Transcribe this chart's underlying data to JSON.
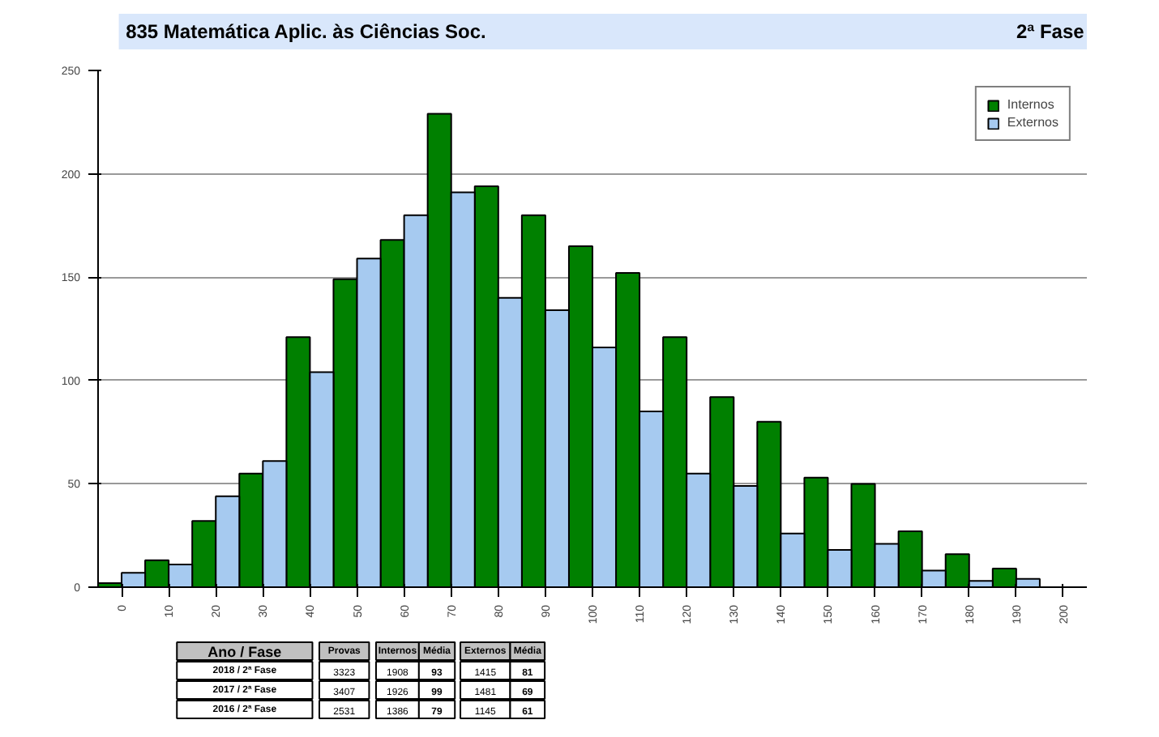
{
  "chart_data": {
    "type": "bar",
    "title": "835  Matemática Aplic. às Ciências Soc.",
    "subtitle": "2ª Fase",
    "categories": [
      "0",
      "10",
      "20",
      "30",
      "40",
      "50",
      "60",
      "70",
      "80",
      "90",
      "100",
      "110",
      "120",
      "130",
      "140",
      "150",
      "160",
      "170",
      "180",
      "190",
      "200"
    ],
    "series": [
      {
        "name": "Internos",
        "color": "#008000",
        "values": [
          2,
          13,
          32,
          55,
          121,
          149,
          168,
          229,
          194,
          180,
          165,
          152,
          121,
          92,
          80,
          53,
          50,
          27,
          16,
          9,
          null
        ]
      },
      {
        "name": "Externos",
        "color": "#a6caf0",
        "values": [
          7,
          11,
          44,
          61,
          104,
          159,
          180,
          191,
          140,
          134,
          116,
          85,
          55,
          49,
          26,
          18,
          21,
          8,
          3,
          4,
          null
        ]
      }
    ],
    "ylim": [
      0,
      250
    ],
    "yticks": [
      0,
      50,
      100,
      150,
      200,
      250
    ],
    "grid": "y",
    "legend": "top right",
    "annotations": [
      "Ano / Fase",
      "Provas",
      "Internos",
      "Média",
      "Externos",
      "Média",
      "2018 / 2ª Fase",
      "3323",
      "1908",
      "93",
      "1415",
      "81",
      "2017 / 2ª Fase",
      "3407",
      "1926",
      "99",
      "1481",
      "69",
      "2016 / 2ª Fase",
      "2531",
      "1386",
      "79",
      "1145",
      "61"
    ]
  }
}
